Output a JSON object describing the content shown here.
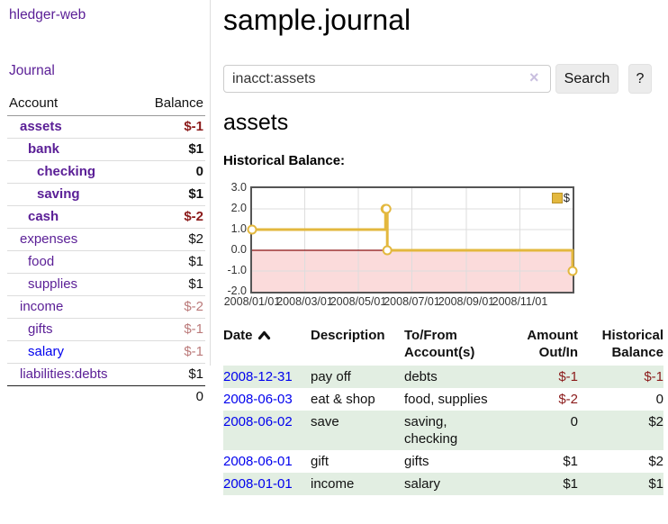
{
  "sidebar": {
    "brand": "hledger-web",
    "nav": {
      "journal": "Journal"
    },
    "accounts_table": {
      "headers": {
        "account": "Account",
        "balance": "Balance"
      },
      "rows": [
        {
          "name": "assets",
          "depth": 1,
          "bold": true,
          "balance": "$-1",
          "balance_color": "negative"
        },
        {
          "name": "bank",
          "depth": 2,
          "bold": true,
          "balance": "$1",
          "balance_color": "normal"
        },
        {
          "name": "checking",
          "depth": 3,
          "bold": true,
          "balance": "0",
          "balance_color": "normal"
        },
        {
          "name": "saving",
          "depth": 3,
          "bold": true,
          "balance": "$1",
          "balance_color": "normal"
        },
        {
          "name": "cash",
          "depth": 2,
          "bold": true,
          "balance": "$-2",
          "balance_color": "negative"
        },
        {
          "name": "expenses",
          "depth": 1,
          "bold": false,
          "balance": "$2",
          "balance_color": "normal"
        },
        {
          "name": "food",
          "depth": 2,
          "bold": false,
          "balance": "$1",
          "balance_color": "normal"
        },
        {
          "name": "supplies",
          "depth": 2,
          "bold": false,
          "balance": "$1",
          "balance_color": "normal"
        },
        {
          "name": "income",
          "depth": 1,
          "bold": false,
          "balance": "$-2",
          "balance_color": "negative-muted"
        },
        {
          "name": "gifts",
          "depth": 2,
          "bold": false,
          "balance": "$-1",
          "balance_color": "negative-muted"
        },
        {
          "name": "salary",
          "depth": 2,
          "bold": false,
          "link_color": "blue",
          "balance": "$-1",
          "balance_color": "negative-muted"
        },
        {
          "name": "liabilities:debts",
          "depth": 1,
          "bold": false,
          "balance": "$1",
          "balance_color": "normal"
        }
      ],
      "total": "0"
    }
  },
  "header": {
    "title": "sample.journal"
  },
  "search": {
    "value": "inacct:assets",
    "clear_icon": "×",
    "button": "Search",
    "help_button": "?"
  },
  "account_page": {
    "title": "assets",
    "chart_label": "Historical Balance:"
  },
  "chart_data": {
    "type": "line",
    "step": "after",
    "legend": [
      {
        "label": "$"
      }
    ],
    "x_days": [
      0,
      152,
      153,
      154,
      365
    ],
    "x_dates": [
      "2008-01-01",
      "2008-06-01",
      "2008-06-02",
      "2008-06-03",
      "2008-12-31"
    ],
    "series": [
      {
        "name": "$",
        "values": [
          1,
          2,
          2,
          0,
          -1
        ]
      }
    ],
    "xlim": [
      0,
      365
    ],
    "ylim": [
      -2,
      3
    ],
    "y_ticks": [
      "3.0",
      "2.0",
      "1.0",
      "0.0",
      "-1.0",
      "-2.0"
    ],
    "x_ticks": [
      {
        "pos": 0,
        "label": "2008/01/01"
      },
      {
        "pos": 60,
        "label": "2008/03/01"
      },
      {
        "pos": 121,
        "label": "2008/05/01"
      },
      {
        "pos": 182,
        "label": "2008/07/01"
      },
      {
        "pos": 244,
        "label": "2008/09/01"
      },
      {
        "pos": 305,
        "label": "2008/11/01"
      }
    ],
    "grid": true,
    "legend_position": "top-right",
    "line_color": "#e3b83e",
    "marker_fill": "#ffffff",
    "negative_region_fill": "#fbdbdb",
    "zero_line_color": "#8b1010",
    "grid_color": "#dddddd"
  },
  "register_table": {
    "headers": {
      "date": "Date",
      "description": "Description",
      "tofrom": "To/From Account(s)",
      "amount": "Amount Out/In",
      "historical": "Historical Balance"
    },
    "rows": [
      {
        "date": "2008-12-31",
        "description": "pay off",
        "accounts": "debts",
        "amount": "$-1",
        "amount_neg": true,
        "historical": "$-1",
        "historical_neg": true,
        "green": true
      },
      {
        "date": "2008-06-03",
        "description": "eat & shop",
        "accounts": "food, supplies",
        "amount": "$-2",
        "amount_neg": true,
        "historical": "0",
        "historical_neg": false,
        "green": false
      },
      {
        "date": "2008-06-02",
        "description": "save",
        "accounts": "saving, checking",
        "amount": "0",
        "amount_neg": false,
        "historical": "$2",
        "historical_neg": false,
        "green": true
      },
      {
        "date": "2008-06-01",
        "description": "gift",
        "accounts": "gifts",
        "amount": "$1",
        "amount_neg": false,
        "historical": "$2",
        "historical_neg": false,
        "green": false
      },
      {
        "date": "2008-01-01",
        "description": "income",
        "accounts": "salary",
        "amount": "$1",
        "amount_neg": false,
        "historical": "$1",
        "historical_neg": false,
        "green": true
      }
    ]
  },
  "colors": {
    "link_purple": "#5a1e96",
    "link_blue": "#0000ee",
    "negative": "#8b1a1a",
    "negative_muted": "#bb7a7a",
    "row_stripe_green": "#e2eee2",
    "chart_gold": "#e3b83e",
    "chart_pink": "#fbdbdb",
    "zero_line": "#8b1010",
    "button_bg": "#ececec"
  }
}
